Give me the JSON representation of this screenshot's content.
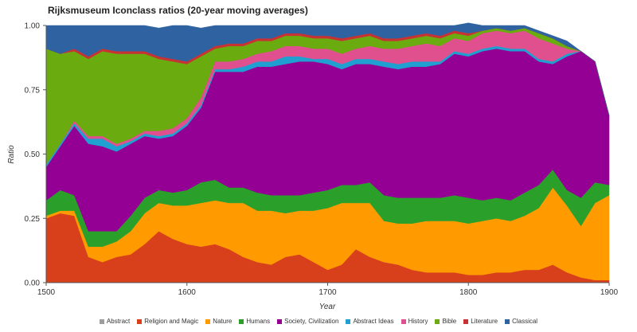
{
  "chart_data": {
    "type": "area",
    "stacked": true,
    "title": "Rijksmuseum Iconclass ratios (20-year moving averages)",
    "xlabel": "Year",
    "ylabel": "Ratio",
    "xlim": [
      1500,
      1900
    ],
    "ylim": [
      0,
      1
    ],
    "x_ticks": [
      "1500",
      "1600",
      "1700",
      "1800",
      "1900"
    ],
    "y_ticks": [
      "0.00",
      "0.25",
      "0.50",
      "0.75",
      "1.00"
    ],
    "grid": false,
    "legend_position": "bottom",
    "x": [
      1500,
      1510,
      1520,
      1530,
      1540,
      1550,
      1560,
      1570,
      1580,
      1590,
      1600,
      1610,
      1620,
      1630,
      1640,
      1650,
      1660,
      1670,
      1680,
      1690,
      1700,
      1710,
      1720,
      1730,
      1740,
      1750,
      1760,
      1770,
      1780,
      1790,
      1800,
      1810,
      1820,
      1830,
      1840,
      1850,
      1860,
      1870,
      1880,
      1890,
      1900
    ],
    "series": [
      {
        "name": "Abstract",
        "color": "#9e9e9e",
        "values": [
          0,
          0,
          0,
          0,
          0,
          0,
          0,
          0,
          0,
          0,
          0,
          0,
          0,
          0,
          0,
          0,
          0,
          0,
          0,
          0,
          0,
          0,
          0,
          0,
          0,
          0,
          0,
          0,
          0,
          0,
          0,
          0,
          0,
          0,
          0,
          0,
          0,
          0,
          0,
          0,
          0
        ]
      },
      {
        "name": "Religion and Magic",
        "color": "#d8401c",
        "values": [
          0.25,
          0.27,
          0.26,
          0.1,
          0.08,
          0.1,
          0.11,
          0.15,
          0.2,
          0.17,
          0.15,
          0.14,
          0.15,
          0.13,
          0.1,
          0.08,
          0.07,
          0.1,
          0.11,
          0.08,
          0.05,
          0.07,
          0.13,
          0.1,
          0.08,
          0.07,
          0.05,
          0.04,
          0.04,
          0.04,
          0.03,
          0.03,
          0.04,
          0.04,
          0.05,
          0.05,
          0.07,
          0.04,
          0.02,
          0.01,
          0.01
        ]
      },
      {
        "name": "Nature",
        "color": "#ff9a00",
        "values": [
          0.01,
          0.01,
          0.02,
          0.04,
          0.06,
          0.06,
          0.09,
          0.12,
          0.11,
          0.13,
          0.15,
          0.17,
          0.17,
          0.18,
          0.21,
          0.2,
          0.21,
          0.17,
          0.17,
          0.2,
          0.24,
          0.24,
          0.18,
          0.21,
          0.16,
          0.16,
          0.18,
          0.2,
          0.2,
          0.2,
          0.2,
          0.21,
          0.21,
          0.2,
          0.21,
          0.24,
          0.3,
          0.26,
          0.2,
          0.3,
          0.33
        ]
      },
      {
        "name": "Humans",
        "color": "#2aa02a",
        "values": [
          0.06,
          0.08,
          0.06,
          0.06,
          0.06,
          0.04,
          0.06,
          0.06,
          0.05,
          0.05,
          0.06,
          0.08,
          0.08,
          0.06,
          0.06,
          0.07,
          0.06,
          0.07,
          0.06,
          0.07,
          0.07,
          0.07,
          0.07,
          0.08,
          0.1,
          0.1,
          0.1,
          0.09,
          0.09,
          0.1,
          0.1,
          0.08,
          0.08,
          0.08,
          0.09,
          0.09,
          0.07,
          0.06,
          0.11,
          0.08,
          0.04
        ]
      },
      {
        "name": "Society, Civilization",
        "color": "#930093",
        "values": [
          0.13,
          0.17,
          0.27,
          0.34,
          0.33,
          0.31,
          0.28,
          0.24,
          0.2,
          0.22,
          0.25,
          0.29,
          0.42,
          0.45,
          0.45,
          0.49,
          0.5,
          0.51,
          0.52,
          0.51,
          0.49,
          0.45,
          0.47,
          0.46,
          0.5,
          0.5,
          0.51,
          0.51,
          0.52,
          0.55,
          0.55,
          0.58,
          0.58,
          0.58,
          0.55,
          0.48,
          0.41,
          0.52,
          0.57,
          0.47,
          0.27
        ]
      },
      {
        "name": "Abstract Ideas",
        "color": "#1fa0d0",
        "values": [
          0.01,
          0.01,
          0.01,
          0.02,
          0.03,
          0.02,
          0.01,
          0.01,
          0.01,
          0.01,
          0.01,
          0.01,
          0.01,
          0.01,
          0.02,
          0.02,
          0.02,
          0.03,
          0.02,
          0.01,
          0.02,
          0.02,
          0.02,
          0.02,
          0.02,
          0.02,
          0.02,
          0.02,
          0.01,
          0.01,
          0.01,
          0.01,
          0.01,
          0.01,
          0.01,
          0.01,
          0.01,
          0.01,
          0.0,
          0.0,
          0.0
        ]
      },
      {
        "name": "History",
        "color": "#e0508e",
        "values": [
          0.0,
          0.0,
          0.01,
          0.01,
          0.01,
          0.01,
          0.01,
          0.01,
          0.02,
          0.02,
          0.02,
          0.03,
          0.03,
          0.03,
          0.03,
          0.03,
          0.04,
          0.04,
          0.04,
          0.04,
          0.04,
          0.04,
          0.04,
          0.05,
          0.05,
          0.06,
          0.06,
          0.07,
          0.06,
          0.05,
          0.05,
          0.06,
          0.06,
          0.06,
          0.07,
          0.08,
          0.07,
          0.02,
          0.0,
          0.0,
          0.0
        ]
      },
      {
        "name": "Bible",
        "color": "#6aab10",
        "values": [
          0.45,
          0.35,
          0.27,
          0.3,
          0.33,
          0.35,
          0.33,
          0.3,
          0.28,
          0.26,
          0.21,
          0.16,
          0.05,
          0.06,
          0.05,
          0.05,
          0.04,
          0.04,
          0.04,
          0.04,
          0.04,
          0.05,
          0.04,
          0.04,
          0.03,
          0.03,
          0.03,
          0.03,
          0.03,
          0.02,
          0.02,
          0.01,
          0.01,
          0.01,
          0.01,
          0.02,
          0.02,
          0.01,
          0.0,
          0.0,
          0.0
        ]
      },
      {
        "name": "Literature",
        "color": "#c83232",
        "values": [
          0.0,
          0.0,
          0.01,
          0.01,
          0.01,
          0.01,
          0.01,
          0.01,
          0.01,
          0.01,
          0.01,
          0.01,
          0.01,
          0.01,
          0.01,
          0.01,
          0.01,
          0.01,
          0.01,
          0.01,
          0.01,
          0.01,
          0.01,
          0.01,
          0.01,
          0.01,
          0.01,
          0.01,
          0.01,
          0.01,
          0.01,
          0.0,
          0.0,
          0.0,
          0.0,
          0.0,
          0.0,
          0.0,
          0.0,
          0.0,
          0.0
        ]
      },
      {
        "name": "Classical",
        "color": "#2f62a0",
        "values": [
          0.09,
          0.11,
          0.09,
          0.12,
          0.09,
          0.1,
          0.1,
          0.1,
          0.11,
          0.13,
          0.14,
          0.1,
          0.08,
          0.07,
          0.07,
          0.05,
          0.05,
          0.03,
          0.03,
          0.04,
          0.04,
          0.05,
          0.04,
          0.03,
          0.05,
          0.05,
          0.04,
          0.03,
          0.04,
          0.02,
          0.04,
          0.02,
          0.01,
          0.02,
          0.01,
          0.01,
          0.01,
          0.02,
          0.0,
          0.0,
          0.0
        ]
      }
    ]
  }
}
